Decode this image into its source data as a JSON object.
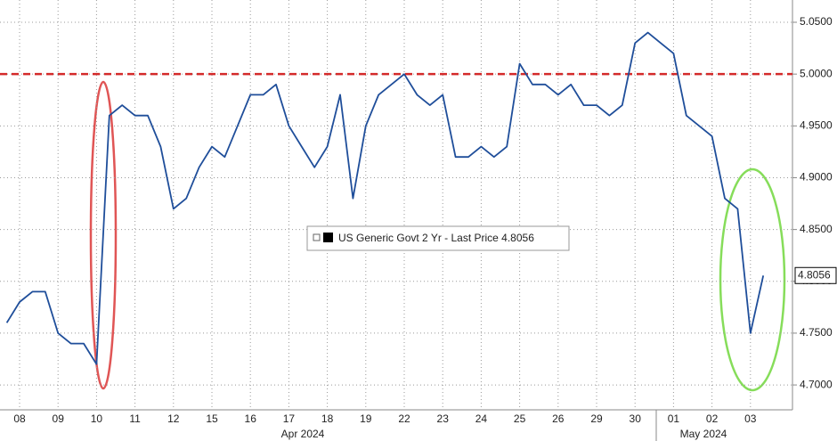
{
  "chart_data": {
    "type": "line",
    "legend": "US Generic Govt 2 Yr - Last Price 4.8056",
    "last_price_label": "4.8056",
    "month_labels": [
      "Apr 2024",
      "May 2024"
    ],
    "categories": [
      null,
      "08",
      null,
      null,
      "09",
      null,
      null,
      "10",
      null,
      null,
      "11",
      null,
      null,
      "12",
      null,
      null,
      "15",
      null,
      null,
      "16",
      null,
      null,
      "17",
      null,
      null,
      "18",
      null,
      null,
      "19",
      null,
      null,
      "22",
      null,
      null,
      "23",
      null,
      null,
      "24",
      null,
      null,
      "25",
      null,
      null,
      "26",
      null,
      null,
      "29",
      null,
      null,
      "30",
      null,
      null,
      "01",
      null,
      null,
      "02",
      null,
      null,
      "03",
      null
    ],
    "series": [
      {
        "name": "US Generic Govt 2 Yr",
        "color": "#1f4e9a",
        "values": [
          4.76,
          4.78,
          4.79,
          4.79,
          4.75,
          4.74,
          4.74,
          4.72,
          4.96,
          4.97,
          4.96,
          4.96,
          4.93,
          4.87,
          4.88,
          4.91,
          4.93,
          4.92,
          4.95,
          4.98,
          4.98,
          4.99,
          4.95,
          4.93,
          4.91,
          4.93,
          4.98,
          4.88,
          4.95,
          4.98,
          4.99,
          5.0,
          4.98,
          4.97,
          4.98,
          4.92,
          4.92,
          4.93,
          4.92,
          4.93,
          5.01,
          4.99,
          4.99,
          4.98,
          4.99,
          4.97,
          4.97,
          4.96,
          4.97,
          5.03,
          5.04,
          5.03,
          5.02,
          4.96,
          4.95,
          4.94,
          4.88,
          4.87,
          4.75,
          4.8056
        ]
      }
    ],
    "reference_line": {
      "value": 5.0,
      "color": "#d42a2a"
    },
    "ylim": [
      4.676,
      5.0715
    ],
    "yticks": [
      {
        "value": 4.7,
        "label": "4.7000"
      },
      {
        "value": 4.75,
        "label": "4.7500"
      },
      {
        "value": 4.8,
        "label": "4.8000"
      },
      {
        "value": 4.85,
        "label": "4.8500"
      },
      {
        "value": 4.9,
        "label": "4.9000"
      },
      {
        "value": 4.95,
        "label": "4.9500"
      },
      {
        "value": 5.0,
        "label": "5.0000"
      },
      {
        "value": 5.05,
        "label": "5.0500"
      }
    ],
    "grid": true
  }
}
